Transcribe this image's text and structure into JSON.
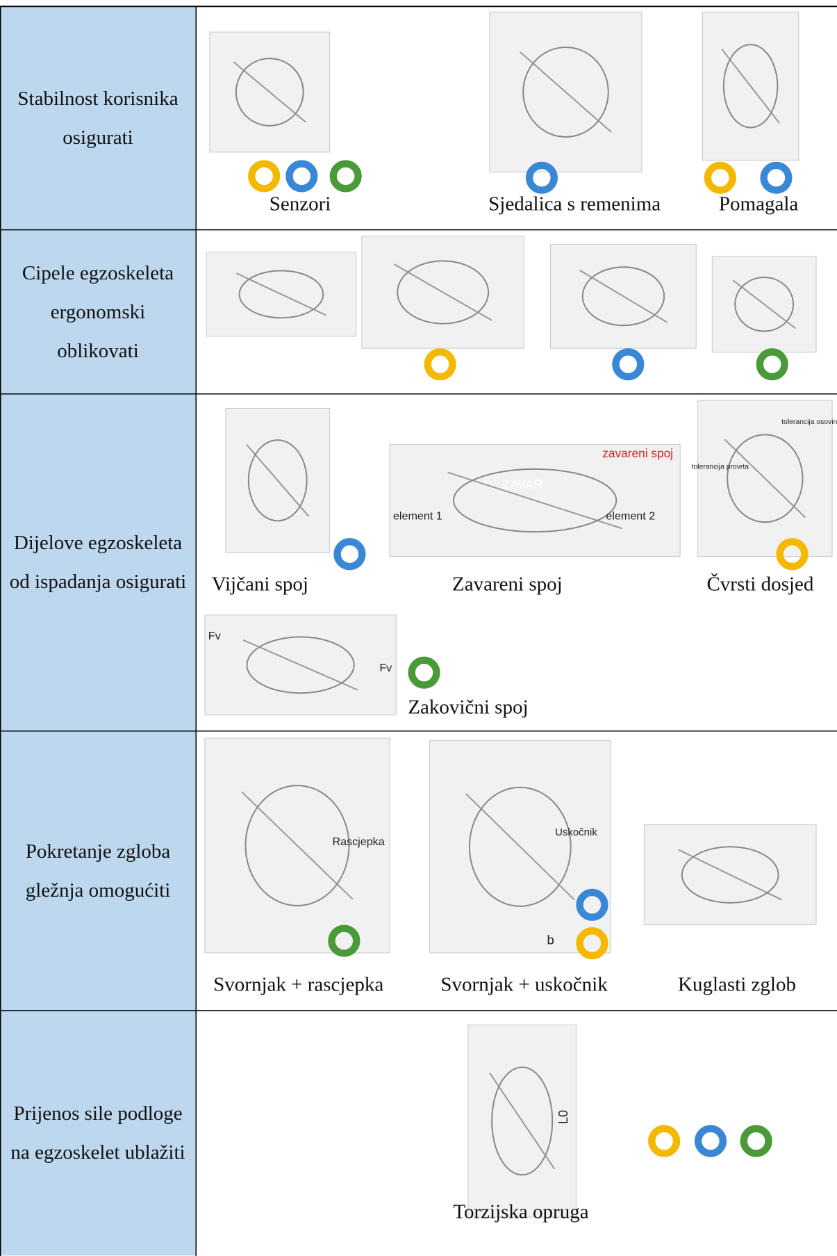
{
  "table": {
    "rows": [
      {
        "label": "Stabilnost korisnika osigurati",
        "options": [
          {
            "label": "Senzori",
            "markers": [
              "#f5b800",
              "#3a87d6",
              "#4a9a3a"
            ]
          },
          {
            "label": "Sjedalica s remenima",
            "markers": [
              "#3a87d6"
            ]
          },
          {
            "label": "Pomagala",
            "markers": [
              "#f5b800",
              "#3a87d6"
            ]
          }
        ]
      },
      {
        "label": "Cipele egzoskeleta ergonomski oblikovati",
        "options": [
          {
            "markers": []
          },
          {
            "markers": [
              "#f5b800"
            ]
          },
          {
            "markers": [
              "#3a87d6"
            ]
          },
          {
            "markers": [
              "#4a9a3a"
            ]
          }
        ]
      },
      {
        "label": "Dijelove egzoskeleta od ispadanja osigurati",
        "options": [
          {
            "label": "Vijčani spoj",
            "markers": [
              "#3a87d6"
            ]
          },
          {
            "label": "Zavareni spoj",
            "markers": [],
            "image_texts": [
              "zavareni spoj",
              "ZAVAR",
              "element 1",
              "element 2"
            ]
          },
          {
            "label": "Čvrsti dosjed",
            "markers": [
              "#f5b800"
            ],
            "image_texts": [
              "tolerancija osovine",
              "tolerancija provrta"
            ]
          },
          {
            "label": "Zakovični spoj",
            "markers": [
              "#4a9a3a"
            ],
            "image_texts": [
              "Fv",
              "Fv"
            ]
          }
        ]
      },
      {
        "label": "Pokretanje zgloba gležnja omogućiti",
        "options": [
          {
            "label": "Svornjak + rascjepka",
            "markers": [
              "#4a9a3a"
            ],
            "image_texts": [
              "Rascjepka"
            ]
          },
          {
            "label": "Svornjak + uskočnik",
            "markers": [
              "#3a87d6",
              "#f5b800"
            ],
            "image_texts": [
              "Uskočnik",
              "b"
            ]
          },
          {
            "label": "Kuglasti zglob",
            "markers": []
          }
        ]
      },
      {
        "label": "Prijenos sile podloge na egzoskelet ublažiti",
        "options": [
          {
            "label": "Torzijska opruga",
            "markers": [
              "#f5b800",
              "#3a87d6",
              "#4a9a3a"
            ],
            "image_texts": [
              "L0"
            ]
          }
        ]
      }
    ]
  }
}
